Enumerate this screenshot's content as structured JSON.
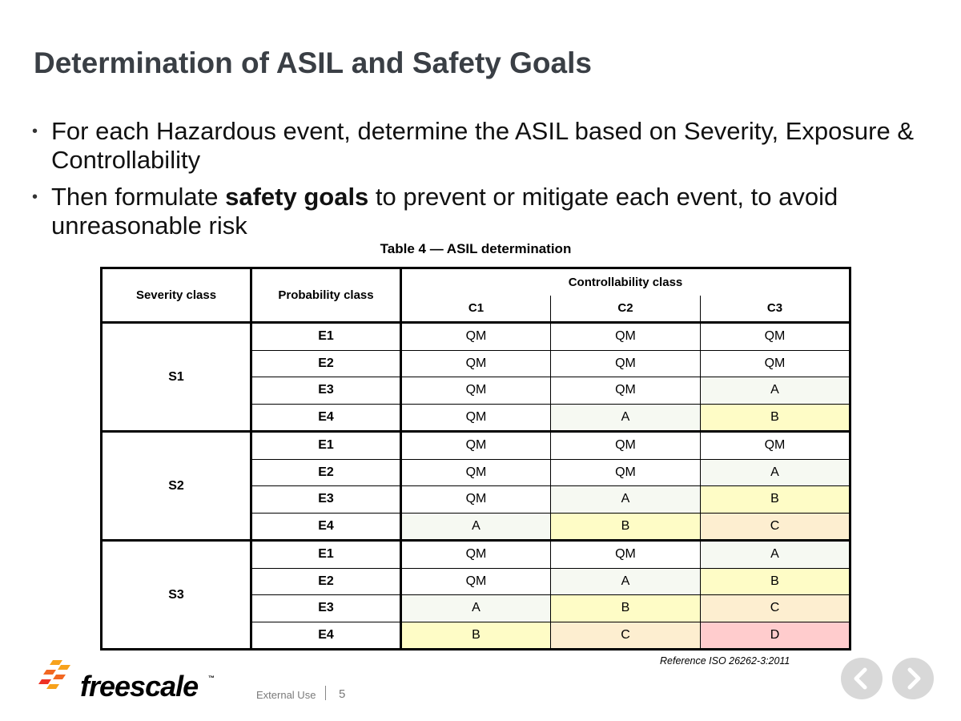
{
  "slide": {
    "title": "Determination of ASIL and Safety Goals",
    "bullets": [
      {
        "before": "For each Hazardous event, determine the ASIL based on Severity, Exposure & Controllability",
        "bold": "",
        "after": ""
      },
      {
        "before": "Then formulate ",
        "bold": "safety goals",
        "after": " to prevent or mitigate each event, to avoid unreasonable risk"
      }
    ]
  },
  "table": {
    "caption": "Table 4 — ASIL determination",
    "headers": {
      "severity": "Severity class",
      "probability": "Probability class",
      "controllability": "Controllability class",
      "c1": "C1",
      "c2": "C2",
      "c3": "C3"
    },
    "groups": [
      {
        "severity": "S1",
        "rows": [
          {
            "e": "E1",
            "c": [
              "QM",
              "QM",
              "QM"
            ]
          },
          {
            "e": "E2",
            "c": [
              "QM",
              "QM",
              "QM"
            ]
          },
          {
            "e": "E3",
            "c": [
              "QM",
              "QM",
              "A"
            ]
          },
          {
            "e": "E4",
            "c": [
              "QM",
              "A",
              "B"
            ]
          }
        ]
      },
      {
        "severity": "S2",
        "rows": [
          {
            "e": "E1",
            "c": [
              "QM",
              "QM",
              "QM"
            ]
          },
          {
            "e": "E2",
            "c": [
              "QM",
              "QM",
              "A"
            ]
          },
          {
            "e": "E3",
            "c": [
              "QM",
              "A",
              "B"
            ]
          },
          {
            "e": "E4",
            "c": [
              "A",
              "B",
              "C"
            ]
          }
        ]
      },
      {
        "severity": "S3",
        "rows": [
          {
            "e": "E1",
            "c": [
              "QM",
              "QM",
              "A"
            ]
          },
          {
            "e": "E2",
            "c": [
              "QM",
              "A",
              "B"
            ]
          },
          {
            "e": "E3",
            "c": [
              "A",
              "B",
              "C"
            ]
          },
          {
            "e": "E4",
            "c": [
              "B",
              "C",
              "D"
            ]
          }
        ]
      }
    ],
    "level_colors": {
      "QM": "#ffffff",
      "A": "#f6f9f2",
      "B": "#fefcc6",
      "C": "#fdeed0",
      "D": "#ffcccd"
    }
  },
  "reference": "Reference ISO 26262-3:2011",
  "footer": {
    "logo_text": "freescale",
    "logo_tm": "™",
    "classification": "External Use",
    "page_number": "5"
  },
  "nav": {
    "prev_icon": "chevron-left-icon",
    "next_icon": "chevron-right-icon"
  }
}
